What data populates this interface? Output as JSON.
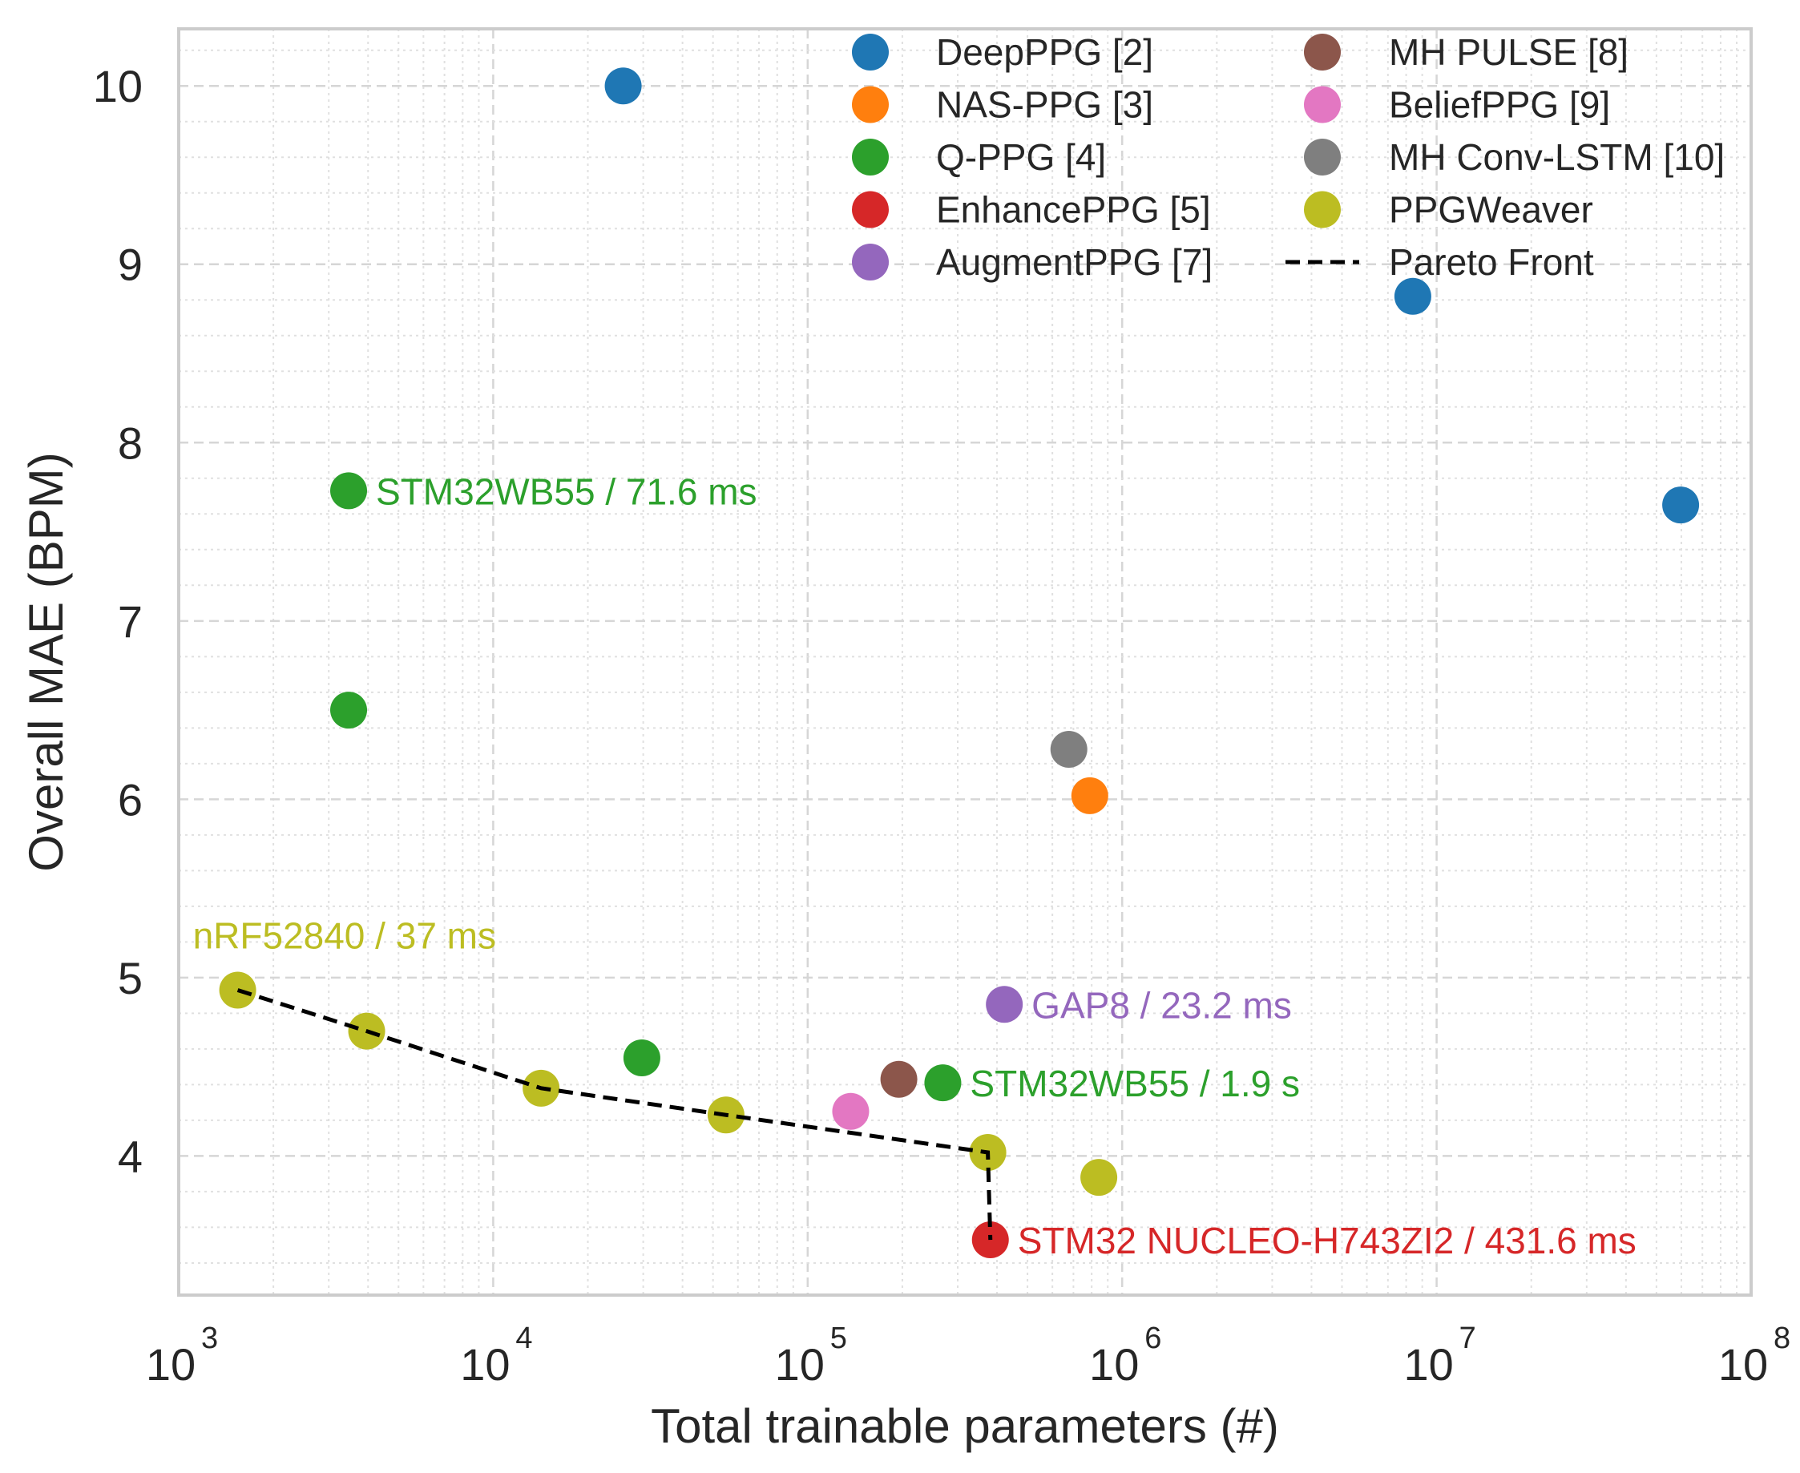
{
  "chart_data": {
    "type": "scatter",
    "title": "",
    "xlabel": "Total trainable parameters (#)",
    "ylabel": "Overall MAE (BPM)",
    "xscale": "log",
    "xlim": [
      1000,
      100000000
    ],
    "ylim": [
      3.22,
      10.32
    ],
    "xticks": [
      {
        "value": 1000,
        "base": "10",
        "exp": "3"
      },
      {
        "value": 10000,
        "base": "10",
        "exp": "4"
      },
      {
        "value": 100000,
        "base": "10",
        "exp": "5"
      },
      {
        "value": 1000000,
        "base": "10",
        "exp": "6"
      },
      {
        "value": 10000000,
        "base": "10",
        "exp": "7"
      },
      {
        "value": 100000000,
        "base": "10",
        "exp": "8"
      }
    ],
    "yticks": [
      "4",
      "5",
      "6",
      "7",
      "8",
      "9",
      "10"
    ],
    "grid": true,
    "legend_position": "top-right",
    "series": [
      {
        "name": "DeepPPG [2]",
        "color": "#1f77b4",
        "points": [
          [
            25900,
            10.0
          ],
          [
            8400000,
            8.82
          ],
          [
            59700000,
            7.65
          ]
        ]
      },
      {
        "name": "NAS-PPG [3]",
        "color": "#ff7f0e",
        "points": [
          [
            789000,
            6.02
          ]
        ]
      },
      {
        "name": "Q-PPG [4]",
        "color": "#2ca02c",
        "points": [
          [
            3470,
            7.73
          ],
          [
            3470,
            6.5
          ],
          [
            29700,
            4.55
          ],
          [
            269000,
            4.41
          ]
        ]
      },
      {
        "name": "EnhancePPG [5]",
        "color": "#d62728",
        "points": [
          [
            381000,
            3.53
          ]
        ]
      },
      {
        "name": "AugmentPPG [7]",
        "color": "#9467bd",
        "points": [
          [
            422000,
            4.85
          ]
        ]
      },
      {
        "name": "MH PULSE [8]",
        "color": "#8c564b",
        "points": [
          [
            195000,
            4.43
          ]
        ]
      },
      {
        "name": "BeliefPPG [9]",
        "color": "#e377c2",
        "points": [
          [
            137000,
            4.25
          ]
        ]
      },
      {
        "name": "MH Conv-LSTM [10]",
        "color": "#7f7f7f",
        "points": [
          [
            677000,
            6.28
          ]
        ]
      },
      {
        "name": "PPGWeaver",
        "color": "#bcbd22",
        "points": [
          [
            1540,
            4.93
          ],
          [
            3960,
            4.7
          ],
          [
            14200,
            4.38
          ],
          [
            55000,
            4.23
          ],
          [
            374000,
            4.02
          ],
          [
            843000,
            3.88
          ]
        ]
      }
    ],
    "pareto_front": {
      "name": "Pareto Front",
      "color": "#000000",
      "points": [
        [
          1540,
          4.93
        ],
        [
          3960,
          4.7
        ],
        [
          14200,
          4.38
        ],
        [
          55000,
          4.23
        ],
        [
          374000,
          4.02
        ],
        [
          381000,
          3.53
        ]
      ]
    },
    "annotations": [
      {
        "text": "STM32WB55 / 71.6 ms",
        "color": "#2ca02c",
        "at": [
          3470,
          7.73
        ],
        "side": "right"
      },
      {
        "text": "nRF52840 / 37 ms",
        "color": "#bcbd22",
        "at": [
          1540,
          4.93
        ],
        "side": "above"
      },
      {
        "text": "GAP8 / 23.2 ms",
        "color": "#9467bd",
        "at": [
          422000,
          4.85
        ],
        "side": "right"
      },
      {
        "text": "STM32WB55 / 1.9 s",
        "color": "#2ca02c",
        "at": [
          269000,
          4.41
        ],
        "side": "right"
      },
      {
        "text": "STM32 NUCLEO-H743ZI2 / 431.6 ms",
        "color": "#d62728",
        "at": [
          381000,
          3.53
        ],
        "side": "right"
      }
    ]
  }
}
